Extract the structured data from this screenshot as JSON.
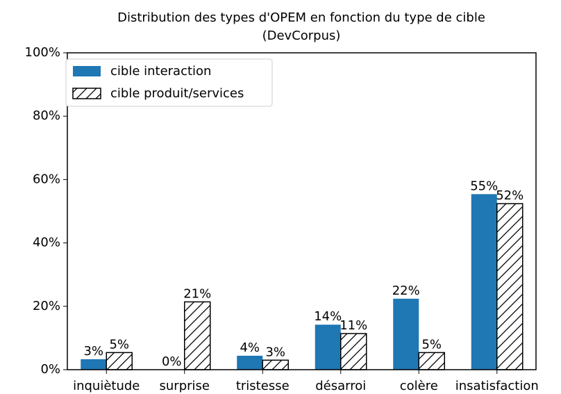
{
  "chart_data": {
    "type": "bar",
    "title": [
      "Distribution des types d'OPEM en fonction du type de cible",
      "(DevCorpus)"
    ],
    "categories": [
      "inquiètude",
      "surprise",
      "tristesse",
      "désarroi",
      "colère",
      "insatisfaction"
    ],
    "series": [
      {
        "name": "cible interaction",
        "color": "#1f77b4",
        "hatch": false,
        "values": [
          3.3,
          0,
          4.4,
          14.2,
          22.4,
          55.4
        ],
        "value_labels": [
          "3%",
          "0%",
          "4%",
          "14%",
          "22%",
          "55%"
        ]
      },
      {
        "name": "cible produit/services",
        "color": "#ffffff",
        "hatch": true,
        "values": [
          5.4,
          21.4,
          3.0,
          11.4,
          5.4,
          52.4
        ],
        "value_labels": [
          "5%",
          "21%",
          "3%",
          "11%",
          "5%",
          "52%"
        ]
      }
    ],
    "ylim": [
      0,
      100
    ],
    "yticks": [
      {
        "value": 0,
        "label": "0%"
      },
      {
        "value": 20,
        "label": "20%"
      },
      {
        "value": 40,
        "label": "40%"
      },
      {
        "value": 60,
        "label": "60%"
      },
      {
        "value": 80,
        "label": "80%"
      },
      {
        "value": 100,
        "label": "100%"
      }
    ],
    "legend": "upper left"
  }
}
